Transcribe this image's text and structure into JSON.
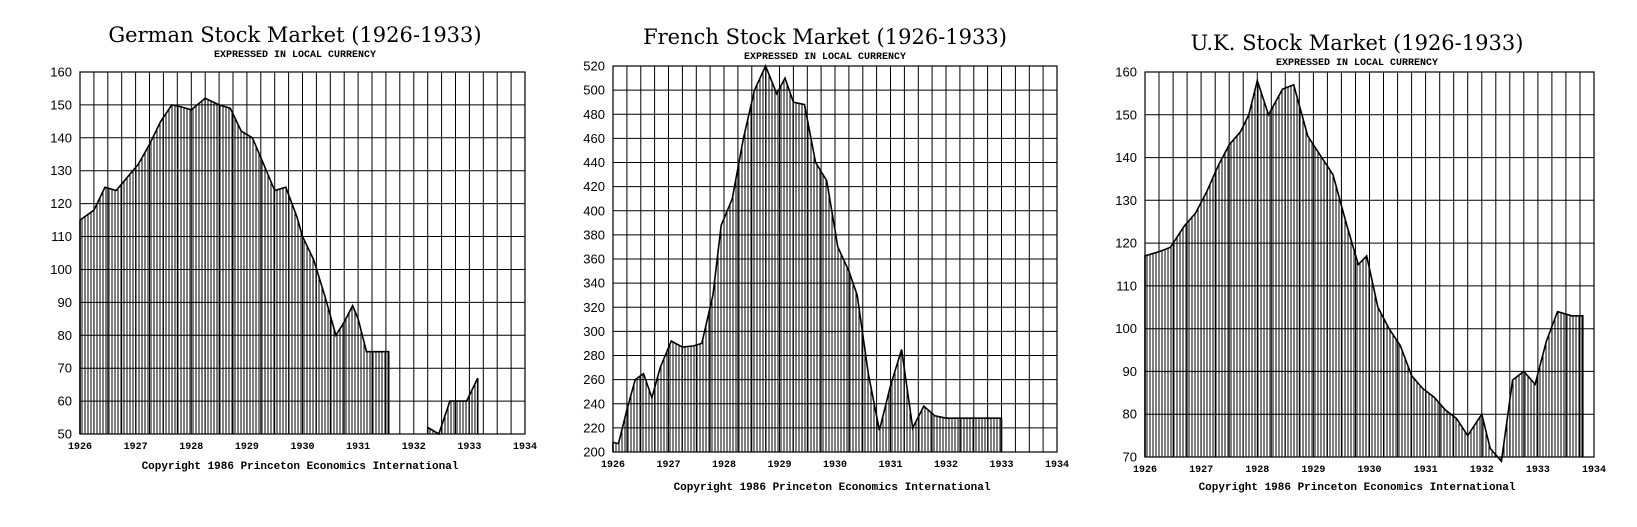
{
  "chart_data": [
    {
      "type": "area",
      "title": "German Stock Market (1926-1933)",
      "subtitle": "EXPRESSED IN LOCAL CURRENCY",
      "copyright": "Copyright 1986 Princeton Economics International",
      "xlim": [
        1926,
        1934
      ],
      "ylim": [
        50,
        160
      ],
      "yticks": [
        "50",
        "60",
        "70",
        "80",
        "90",
        "100",
        "110",
        "120",
        "130",
        "140",
        "150",
        "160"
      ],
      "xticks": [
        "1926",
        "1927",
        "1928",
        "1929",
        "1930",
        "1931",
        "1932",
        "1933",
        "1934"
      ],
      "segments": [
        {
          "x": [
            1926.0,
            1926.25,
            1926.45,
            1926.65,
            1926.85,
            1927.05,
            1927.25,
            1927.45,
            1927.65,
            1927.8,
            1928.0,
            1928.25,
            1928.5,
            1928.7,
            1928.9,
            1929.1,
            1929.3,
            1929.5,
            1929.7,
            1929.9,
            1930.0,
            1930.2,
            1930.4,
            1930.6,
            1930.75,
            1930.9,
            1931.0,
            1931.15,
            1931.35,
            1931.55
          ],
          "y": [
            115,
            118,
            125,
            124,
            128,
            132,
            138,
            145,
            150,
            149.5,
            148.5,
            152,
            150,
            149,
            142,
            140,
            132,
            124,
            125,
            116,
            110,
            103,
            92,
            80,
            84,
            89,
            85,
            75,
            75,
            75
          ]
        },
        {
          "x": [
            1932.25,
            1932.45,
            1932.65,
            1932.95,
            1933.15
          ],
          "y": [
            52,
            50,
            60,
            60,
            67
          ]
        }
      ]
    },
    {
      "type": "area",
      "title": "French Stock Market (1926-1933)",
      "subtitle": "EXPRESSED IN LOCAL CURRENCY",
      "copyright": "Copyright 1986 Princeton Economics International",
      "xlim": [
        1926,
        1934
      ],
      "ylim": [
        200,
        520
      ],
      "yticks": [
        "200",
        "220",
        "240",
        "260",
        "280",
        "300",
        "320",
        "340",
        "360",
        "380",
        "400",
        "420",
        "440",
        "460",
        "480",
        "500",
        "520"
      ],
      "xticks": [
        "1926",
        "1927",
        "1928",
        "1929",
        "1930",
        "1931",
        "1932",
        "1933",
        "1934"
      ],
      "segments": [
        {
          "x": [
            1926.0,
            1926.1,
            1926.25,
            1926.4,
            1926.55,
            1926.7,
            1926.85,
            1927.05,
            1927.25,
            1927.45,
            1927.6,
            1927.8,
            1927.95,
            1928.15,
            1928.35,
            1928.55,
            1928.75,
            1928.95,
            1929.1,
            1929.25,
            1929.45,
            1929.65,
            1929.85,
            1930.05,
            1930.25,
            1930.4,
            1930.6,
            1930.8,
            1931.0,
            1931.2,
            1931.4,
            1931.6,
            1931.8,
            1932.0,
            1932.15,
            1932.3,
            1932.5,
            1932.7,
            1932.9,
            1933.0
          ],
          "y": [
            208,
            207,
            235,
            260,
            265,
            245,
            270,
            292,
            287,
            288,
            290,
            330,
            388,
            410,
            460,
            500,
            520,
            497,
            510,
            490,
            488,
            440,
            425,
            370,
            350,
            330,
            265,
            218,
            255,
            285,
            220,
            238,
            230,
            228,
            228,
            228,
            228,
            228,
            228,
            228
          ]
        }
      ]
    },
    {
      "type": "area",
      "title": "U.K. Stock Market (1926-1933)",
      "subtitle": "EXPRESSED IN LOCAL CURRENCY",
      "copyright": "Copyright 1986 Princeton Economics International",
      "xlim": [
        1926,
        1934
      ],
      "ylim": [
        70,
        160
      ],
      "yticks": [
        "70",
        "80",
        "90",
        "100",
        "110",
        "120",
        "130",
        "140",
        "150",
        "160"
      ],
      "xticks": [
        "1926",
        "1927",
        "1928",
        "1929",
        "1930",
        "1931",
        "1932",
        "1933",
        "1934"
      ],
      "segments": [
        {
          "x": [
            1926.0,
            1926.25,
            1926.45,
            1926.7,
            1926.9,
            1927.1,
            1927.3,
            1927.5,
            1927.7,
            1927.85,
            1928.0,
            1928.2,
            1928.45,
            1928.65,
            1928.9,
            1929.1,
            1929.35,
            1929.6,
            1929.8,
            1929.95,
            1930.15,
            1930.35,
            1930.55,
            1930.75,
            1930.95,
            1931.15,
            1931.35,
            1931.55,
            1931.75,
            1932.0,
            1932.15,
            1932.35,
            1932.55,
            1932.75,
            1932.95,
            1933.15,
            1933.35,
            1933.6,
            1933.8
          ],
          "y": [
            117,
            118,
            119,
            124,
            127,
            132,
            138,
            143,
            146,
            150,
            158,
            150,
            156,
            157,
            145,
            141,
            136,
            124,
            115,
            117,
            105,
            100,
            96,
            89,
            86,
            84,
            81,
            79,
            75,
            80,
            72,
            69,
            88,
            90,
            87,
            97,
            104,
            103,
            103
          ]
        }
      ]
    }
  ]
}
